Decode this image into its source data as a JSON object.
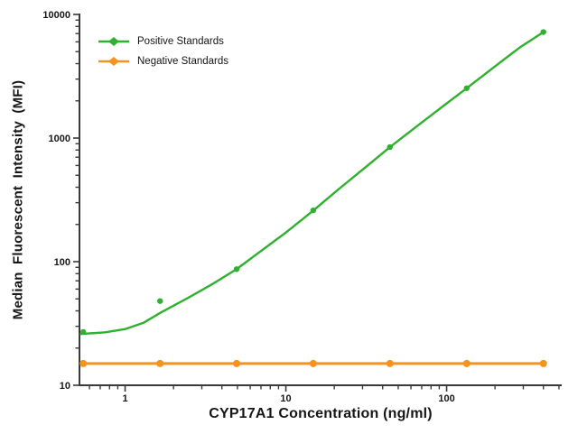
{
  "figure": {
    "background": "#ffffff",
    "axis_color": "#3a3a3a",
    "text_color": "#161616"
  },
  "chart_data": {
    "type": "line",
    "title": "",
    "xlabel": "CYP17A1 Concentration (ng/ml)",
    "ylabel": "Median Fluorescent Intensity (MFI)",
    "x_scale": "log",
    "y_scale": "log",
    "xlim": [
      0.52,
      520
    ],
    "ylim": [
      10,
      10000
    ],
    "x_ticks": {
      "major": [
        1,
        10,
        100
      ],
      "labels": [
        "1",
        "10",
        "100"
      ]
    },
    "y_ticks": {
      "major": [
        10,
        100,
        1000,
        10000
      ],
      "labels": [
        "10",
        "100",
        "1000",
        "10000"
      ]
    },
    "grid": false,
    "legend_position": "inside-top-left",
    "series": [
      {
        "name": "Positive Standards",
        "color": "#2eb12e",
        "marker": "circle",
        "x": [
          0.549,
          1.65,
          4.94,
          14.8,
          44.4,
          133.3,
          400
        ],
        "y": [
          27,
          48,
          87,
          260,
          845,
          2530,
          7200
        ],
        "fit_curve": [
          [
            0.53,
            26
          ],
          [
            0.75,
            26.8
          ],
          [
            1.0,
            28.5
          ],
          [
            1.3,
            32
          ],
          [
            1.65,
            38.5
          ],
          [
            2.4,
            50
          ],
          [
            3.5,
            66
          ],
          [
            4.94,
            87
          ],
          [
            7.0,
            122
          ],
          [
            10.0,
            172
          ],
          [
            14.8,
            259
          ],
          [
            21.0,
            380
          ],
          [
            30.0,
            555
          ],
          [
            44.4,
            845
          ],
          [
            65.0,
            1240
          ],
          [
            90.0,
            1715
          ],
          [
            133.3,
            2530
          ],
          [
            200.0,
            3800
          ],
          [
            285.0,
            5400
          ],
          [
            400.0,
            7200
          ]
        ]
      },
      {
        "name": "Negative Standards",
        "color": "#f6921e",
        "marker": "circle",
        "x": [
          0.549,
          1.65,
          4.94,
          14.8,
          44.4,
          133.3,
          400
        ],
        "y": [
          15,
          15,
          15,
          15,
          15,
          15,
          15
        ],
        "fit_curve": null
      }
    ]
  }
}
